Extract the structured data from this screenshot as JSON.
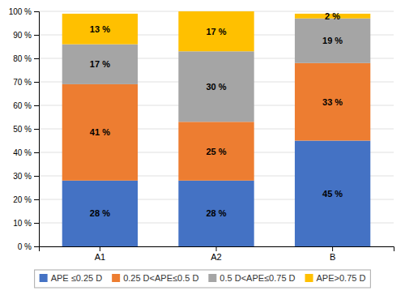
{
  "chart_data": {
    "type": "bar",
    "stacked": true,
    "categories": [
      "A1",
      "A2",
      "B"
    ],
    "series": [
      {
        "name": "APE ≤0.25 D",
        "color": "#4472C4",
        "values": [
          28,
          28,
          45
        ],
        "value_labels": [
          "28 %",
          "28 %",
          "45 %"
        ]
      },
      {
        "name": "0.25 D<APE≤0.5 D",
        "color": "#ED7D31",
        "values": [
          41,
          25,
          33
        ],
        "value_labels": [
          "41 %",
          "25 %",
          "33 %"
        ]
      },
      {
        "name": "0.5 D<APE≤0.75 D",
        "color": "#A5A5A5",
        "values": [
          17,
          30,
          19
        ],
        "value_labels": [
          "17 %",
          "30 %",
          "19 %"
        ]
      },
      {
        "name": "APE>0.75 D",
        "color": "#FFC000",
        "values": [
          13,
          17,
          2
        ],
        "value_labels": [
          "13 %",
          "17 %",
          "2 %"
        ]
      }
    ],
    "ylim": [
      0,
      100
    ],
    "yticks": [
      {
        "value": 0,
        "label": "0 %"
      },
      {
        "value": 10,
        "label": "10 %"
      },
      {
        "value": 20,
        "label": "20 %"
      },
      {
        "value": 30,
        "label": "30 %"
      },
      {
        "value": 40,
        "label": "40 %"
      },
      {
        "value": 50,
        "label": "50 %"
      },
      {
        "value": 60,
        "label": "60 %"
      },
      {
        "value": 70,
        "label": "70 %"
      },
      {
        "value": 80,
        "label": "80 %"
      },
      {
        "value": 90,
        "label": "90 %"
      },
      {
        "value": 100,
        "label": "100 %"
      }
    ],
    "grid": true,
    "legend": "bottom",
    "data_labels": true
  }
}
